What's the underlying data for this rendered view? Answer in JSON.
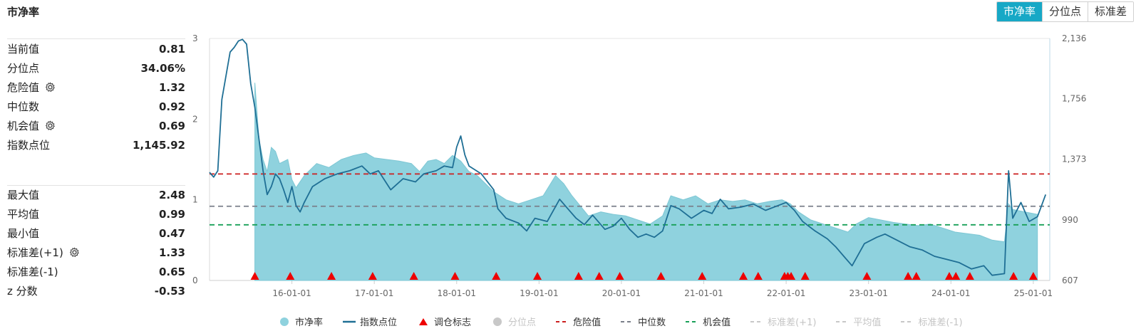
{
  "header": {
    "title": "市净率"
  },
  "tabs": [
    {
      "label": "市净率",
      "active": true
    },
    {
      "label": "分位点",
      "active": false
    },
    {
      "label": "标准差",
      "active": false
    }
  ],
  "stats_top": [
    {
      "label": "当前值",
      "value": "0.81",
      "gear": false
    },
    {
      "label": "分位点",
      "value": "34.06%",
      "gear": false
    },
    {
      "label": "危险值",
      "value": "1.32",
      "gear": true
    },
    {
      "label": "中位数",
      "value": "0.92",
      "gear": false
    },
    {
      "label": "机会值",
      "value": "0.69",
      "gear": true
    },
    {
      "label": "指数点位",
      "value": "1,145.92",
      "gear": false
    }
  ],
  "stats_bottom": [
    {
      "label": "最大值",
      "value": "2.48",
      "gear": false
    },
    {
      "label": "平均值",
      "value": "0.99",
      "gear": false
    },
    {
      "label": "最小值",
      "value": "0.47",
      "gear": false
    },
    {
      "label": "标准差(+1)",
      "value": "1.33",
      "gear": true
    },
    {
      "label": "标准差(-1)",
      "value": "0.65",
      "gear": false
    },
    {
      "label": "z 分数",
      "value": "-0.53",
      "gear": false
    }
  ],
  "colors": {
    "pb_area": "#8fd2de",
    "index_line": "#1f6f95",
    "marker": "#ee0000",
    "danger": "#cc1f1f",
    "median": "#7a7f8a",
    "opportunity": "#18a058",
    "disabled": "#c8c8c8",
    "tab_active": "#17a8c6"
  },
  "chart_data": {
    "type": "area",
    "x_ticks": [
      "16-01-01",
      "17-01-01",
      "18-01-01",
      "19-01-01",
      "20-01-01",
      "21-01-01",
      "22-01-01",
      "23-01-01",
      "24-01-01",
      "25-01-01"
    ],
    "y_left": {
      "min": 0,
      "max": 3,
      "ticks": [
        "0",
        "1",
        "2",
        "3"
      ]
    },
    "y_right": {
      "min": 607,
      "max": 2136,
      "ticks": [
        "607",
        "990",
        "1,373",
        "1,756",
        "2,136"
      ]
    },
    "reference_lines": {
      "danger": 1.32,
      "median": 0.92,
      "opportunity": 0.69
    },
    "pb_series": [
      [
        2015.55,
        2.45
      ],
      [
        2015.6,
        1.75
      ],
      [
        2015.65,
        1.5
      ],
      [
        2015.7,
        1.35
      ],
      [
        2015.75,
        1.65
      ],
      [
        2015.8,
        1.6
      ],
      [
        2015.85,
        1.45
      ],
      [
        2015.95,
        1.5
      ],
      [
        2016.0,
        1.25
      ],
      [
        2016.05,
        1.15
      ],
      [
        2016.15,
        1.3
      ],
      [
        2016.3,
        1.45
      ],
      [
        2016.45,
        1.4
      ],
      [
        2016.6,
        1.5
      ],
      [
        2016.75,
        1.55
      ],
      [
        2016.9,
        1.58
      ],
      [
        2017.0,
        1.52
      ],
      [
        2017.15,
        1.5
      ],
      [
        2017.3,
        1.48
      ],
      [
        2017.45,
        1.45
      ],
      [
        2017.55,
        1.35
      ],
      [
        2017.65,
        1.48
      ],
      [
        2017.75,
        1.5
      ],
      [
        2017.85,
        1.45
      ],
      [
        2017.95,
        1.55
      ],
      [
        2018.05,
        1.48
      ],
      [
        2018.15,
        1.35
      ],
      [
        2018.25,
        1.3
      ],
      [
        2018.35,
        1.2
      ],
      [
        2018.45,
        1.1
      ],
      [
        2018.6,
        1.0
      ],
      [
        2018.75,
        0.95
      ],
      [
        2018.9,
        1.0
      ],
      [
        2019.05,
        1.05
      ],
      [
        2019.2,
        1.3
      ],
      [
        2019.3,
        1.2
      ],
      [
        2019.4,
        1.05
      ],
      [
        2019.6,
        0.8
      ],
      [
        2019.75,
        0.85
      ],
      [
        2019.9,
        0.82
      ],
      [
        2020.05,
        0.8
      ],
      [
        2020.2,
        0.75
      ],
      [
        2020.35,
        0.7
      ],
      [
        2020.5,
        0.8
      ],
      [
        2020.6,
        1.05
      ],
      [
        2020.75,
        1.0
      ],
      [
        2020.9,
        1.05
      ],
      [
        2021.05,
        0.95
      ],
      [
        2021.2,
        1.0
      ],
      [
        2021.35,
        0.98
      ],
      [
        2021.5,
        1.0
      ],
      [
        2021.65,
        0.95
      ],
      [
        2021.8,
        0.98
      ],
      [
        2021.95,
        1.0
      ],
      [
        2022.05,
        0.95
      ],
      [
        2022.15,
        0.85
      ],
      [
        2022.3,
        0.75
      ],
      [
        2022.45,
        0.7
      ],
      [
        2022.6,
        0.65
      ],
      [
        2022.75,
        0.6
      ],
      [
        2022.85,
        0.7
      ],
      [
        2023.0,
        0.78
      ],
      [
        2023.15,
        0.75
      ],
      [
        2023.3,
        0.72
      ],
      [
        2023.45,
        0.7
      ],
      [
        2023.6,
        0.68
      ],
      [
        2023.75,
        0.7
      ],
      [
        2023.9,
        0.65
      ],
      [
        2024.05,
        0.6
      ],
      [
        2024.2,
        0.58
      ],
      [
        2024.35,
        0.56
      ],
      [
        2024.5,
        0.5
      ],
      [
        2024.65,
        0.48
      ],
      [
        2024.7,
        0.95
      ],
      [
        2024.75,
        0.88
      ],
      [
        2024.9,
        0.85
      ],
      [
        2025.05,
        0.82
      ]
    ],
    "index_series": [
      [
        2015.0,
        1290
      ],
      [
        2015.05,
        1260
      ],
      [
        2015.1,
        1300
      ],
      [
        2015.15,
        1750
      ],
      [
        2015.2,
        1900
      ],
      [
        2015.25,
        2050
      ],
      [
        2015.3,
        2080
      ],
      [
        2015.35,
        2120
      ],
      [
        2015.4,
        2130
      ],
      [
        2015.45,
        2100
      ],
      [
        2015.5,
        1850
      ],
      [
        2015.55,
        1700
      ],
      [
        2015.6,
        1500
      ],
      [
        2015.65,
        1300
      ],
      [
        2015.7,
        1150
      ],
      [
        2015.75,
        1200
      ],
      [
        2015.8,
        1280
      ],
      [
        2015.85,
        1250
      ],
      [
        2015.9,
        1180
      ],
      [
        2015.95,
        1100
      ],
      [
        2016.0,
        1200
      ],
      [
        2016.05,
        1080
      ],
      [
        2016.1,
        1040
      ],
      [
        2016.15,
        1100
      ],
      [
        2016.25,
        1200
      ],
      [
        2016.4,
        1250
      ],
      [
        2016.55,
        1280
      ],
      [
        2016.7,
        1300
      ],
      [
        2016.85,
        1330
      ],
      [
        2016.95,
        1280
      ],
      [
        2017.05,
        1300
      ],
      [
        2017.2,
        1180
      ],
      [
        2017.35,
        1250
      ],
      [
        2017.5,
        1230
      ],
      [
        2017.6,
        1280
      ],
      [
        2017.75,
        1300
      ],
      [
        2017.85,
        1330
      ],
      [
        2017.95,
        1320
      ],
      [
        2018.0,
        1450
      ],
      [
        2018.05,
        1520
      ],
      [
        2018.1,
        1400
      ],
      [
        2018.15,
        1330
      ],
      [
        2018.3,
        1280
      ],
      [
        2018.45,
        1180
      ],
      [
        2018.5,
        1060
      ],
      [
        2018.6,
        1000
      ],
      [
        2018.75,
        970
      ],
      [
        2018.85,
        920
      ],
      [
        2018.95,
        1000
      ],
      [
        2019.1,
        980
      ],
      [
        2019.25,
        1120
      ],
      [
        2019.35,
        1060
      ],
      [
        2019.45,
        1000
      ],
      [
        2019.55,
        960
      ],
      [
        2019.65,
        1020
      ],
      [
        2019.8,
        930
      ],
      [
        2019.9,
        950
      ],
      [
        2020.0,
        1000
      ],
      [
        2020.1,
        930
      ],
      [
        2020.2,
        880
      ],
      [
        2020.3,
        900
      ],
      [
        2020.4,
        880
      ],
      [
        2020.5,
        920
      ],
      [
        2020.6,
        1080
      ],
      [
        2020.7,
        1060
      ],
      [
        2020.85,
        1000
      ],
      [
        2021.0,
        1050
      ],
      [
        2021.1,
        1030
      ],
      [
        2021.2,
        1120
      ],
      [
        2021.3,
        1060
      ],
      [
        2021.45,
        1070
      ],
      [
        2021.6,
        1090
      ],
      [
        2021.75,
        1050
      ],
      [
        2021.9,
        1080
      ],
      [
        2022.0,
        1100
      ],
      [
        2022.1,
        1050
      ],
      [
        2022.2,
        980
      ],
      [
        2022.35,
        920
      ],
      [
        2022.5,
        870
      ],
      [
        2022.6,
        820
      ],
      [
        2022.7,
        760
      ],
      [
        2022.8,
        700
      ],
      [
        2022.95,
        840
      ],
      [
        2023.1,
        880
      ],
      [
        2023.2,
        900
      ],
      [
        2023.35,
        860
      ],
      [
        2023.5,
        820
      ],
      [
        2023.65,
        800
      ],
      [
        2023.8,
        760
      ],
      [
        2023.95,
        740
      ],
      [
        2024.1,
        720
      ],
      [
        2024.25,
        680
      ],
      [
        2024.4,
        700
      ],
      [
        2024.5,
        640
      ],
      [
        2024.65,
        650
      ],
      [
        2024.7,
        1300
      ],
      [
        2024.75,
        1000
      ],
      [
        2024.85,
        1100
      ],
      [
        2024.95,
        980
      ],
      [
        2025.05,
        1010
      ],
      [
        2025.15,
        1150
      ]
    ],
    "markers_x": [
      2015.55,
      2015.98,
      2016.48,
      2016.98,
      2017.48,
      2017.98,
      2018.48,
      2018.98,
      2019.48,
      2019.73,
      2019.98,
      2020.48,
      2020.98,
      2021.48,
      2021.66,
      2021.98,
      2022.02,
      2022.06,
      2022.23,
      2022.98,
      2023.48,
      2023.58,
      2023.98,
      2024.06,
      2024.23,
      2024.76,
      2025.0
    ]
  },
  "legend": [
    {
      "label": "市净率",
      "type": "dot",
      "color": "#8fd2de",
      "enabled": true
    },
    {
      "label": "指数点位",
      "type": "line",
      "color": "#1f6f95",
      "enabled": true
    },
    {
      "label": "调仓标志",
      "type": "triangle",
      "color": "#ee0000",
      "enabled": true
    },
    {
      "label": "分位点",
      "type": "dot",
      "color": "#c8c8c8",
      "enabled": false
    },
    {
      "label": "危险值",
      "type": "dash",
      "color": "#cc1f1f",
      "enabled": true
    },
    {
      "label": "中位数",
      "type": "dash",
      "color": "#7a7f8a",
      "enabled": true
    },
    {
      "label": "机会值",
      "type": "dash",
      "color": "#18a058",
      "enabled": true
    },
    {
      "label": "标准差(+1)",
      "type": "dash",
      "color": "#c8c8c8",
      "enabled": false
    },
    {
      "label": "平均值",
      "type": "dash",
      "color": "#c8c8c8",
      "enabled": false
    },
    {
      "label": "标准差(-1)",
      "type": "dash",
      "color": "#c8c8c8",
      "enabled": false
    }
  ]
}
